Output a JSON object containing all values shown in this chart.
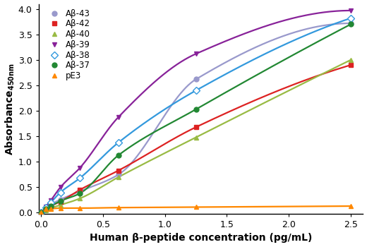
{
  "x_points": [
    0.039,
    0.078,
    0.156,
    0.313,
    0.625,
    1.25,
    2.5
  ],
  "series": {
    "Aβ-43": {
      "y": [
        0.09,
        0.16,
        0.26,
        0.42,
        0.75,
        2.62,
        3.72
      ],
      "color": "#9999CC",
      "marker": "o",
      "marker_face": "#9999CC",
      "markersize": 5
    },
    "Aβ-42": {
      "y": [
        0.07,
        0.13,
        0.22,
        0.45,
        0.83,
        1.68,
        2.9
      ],
      "color": "#DD2222",
      "marker": "s",
      "marker_face": "#DD2222",
      "markersize": 5
    },
    "Aβ-40": {
      "y": [
        0.05,
        0.09,
        0.15,
        0.28,
        0.7,
        1.48,
        3.0
      ],
      "color": "#99BB44",
      "marker": "^",
      "marker_face": "#99BB44",
      "markersize": 5
    },
    "Aβ-39": {
      "y": [
        0.12,
        0.24,
        0.5,
        0.88,
        1.88,
        3.12,
        3.97
      ],
      "color": "#882299",
      "marker": "v",
      "marker_face": "#882299",
      "markersize": 5
    },
    "Aβ-38": {
      "y": [
        0.1,
        0.2,
        0.4,
        0.68,
        1.38,
        2.4,
        3.82
      ],
      "color": "#3399DD",
      "marker": "D",
      "marker_face": "white",
      "markersize": 5
    },
    "Aβ-37": {
      "y": [
        0.08,
        0.13,
        0.23,
        0.38,
        1.13,
        2.03,
        3.7
      ],
      "color": "#228833",
      "marker": "o",
      "marker_face": "#228833",
      "markersize": 5
    },
    "pE3": {
      "y": [
        0.07,
        0.08,
        0.09,
        0.09,
        0.1,
        0.11,
        0.13
      ],
      "color": "#FF8800",
      "marker": "^",
      "marker_face": "#FF8800",
      "markersize": 5
    }
  },
  "xlabel": "Human β-peptide concentration (pg/mL)",
  "ylabel": "Absorbance$_{450nm}$",
  "xlim": [
    -0.02,
    2.6
  ],
  "ylim": [
    -0.02,
    4.1
  ],
  "xticks": [
    0.0,
    0.5,
    1.0,
    1.5,
    2.0,
    2.5
  ],
  "yticks": [
    0.0,
    0.5,
    1.0,
    1.5,
    2.0,
    2.5,
    3.0,
    3.5,
    4.0
  ],
  "legend_order": [
    "Aβ-43",
    "Aβ-42",
    "Aβ-40",
    "Aβ-39",
    "Aβ-38",
    "Aβ-37",
    "pE3"
  ],
  "background_color": "#ffffff"
}
